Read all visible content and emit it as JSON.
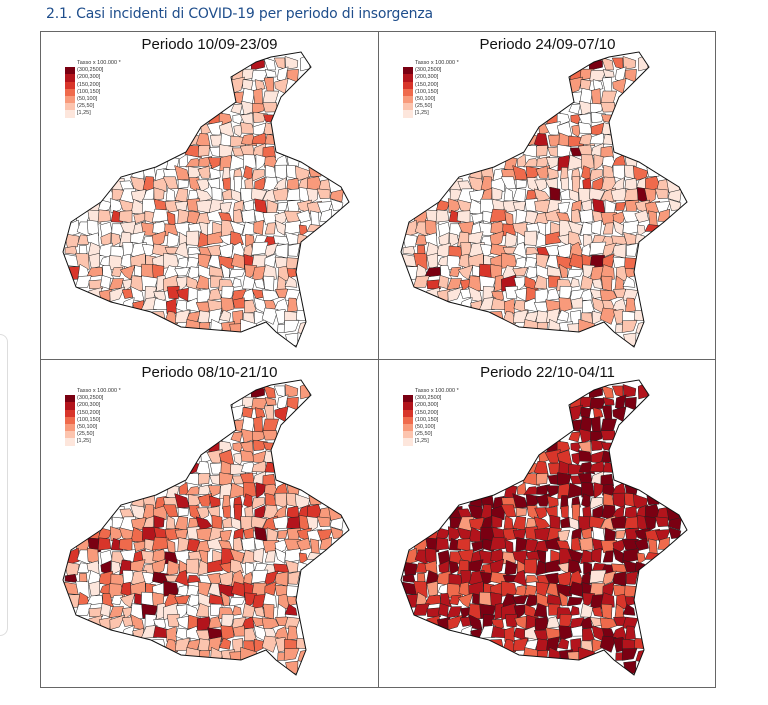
{
  "title": "2.1. Casi incidenti di COVID-19 per periodo di insorgenza",
  "legend": {
    "title": "Tasso x 100.000 *",
    "classes": [
      {
        "label": "(300,2500]",
        "color": "#7a0012"
      },
      {
        "label": "(200,300]",
        "color": "#b3141c"
      },
      {
        "label": "(150,200]",
        "color": "#d8352a"
      },
      {
        "label": "(100,150]",
        "color": "#ef6a4c"
      },
      {
        "label": "(50,100]",
        "color": "#f89a7b"
      },
      {
        "label": "(25,50]",
        "color": "#fcc4ae"
      },
      {
        "label": "[1,25]",
        "color": "#fde6dc"
      }
    ],
    "zero_color": "#ffffff"
  },
  "panels": [
    {
      "title": "Periodo 10/09-23/09",
      "distribution": [
        0.0,
        0.01,
        0.02,
        0.05,
        0.12,
        0.22,
        0.23,
        0.35
      ]
    },
    {
      "title": "Periodo 24/09-07/10",
      "distribution": [
        0.01,
        0.01,
        0.03,
        0.07,
        0.15,
        0.25,
        0.23,
        0.25
      ]
    },
    {
      "title": "Periodo 08/10-21/10",
      "distribution": [
        0.03,
        0.05,
        0.08,
        0.15,
        0.25,
        0.2,
        0.1,
        0.14
      ]
    },
    {
      "title": "Periodo 22/10-04/11",
      "distribution": [
        0.35,
        0.3,
        0.15,
        0.1,
        0.05,
        0.02,
        0.01,
        0.02
      ]
    }
  ]
}
